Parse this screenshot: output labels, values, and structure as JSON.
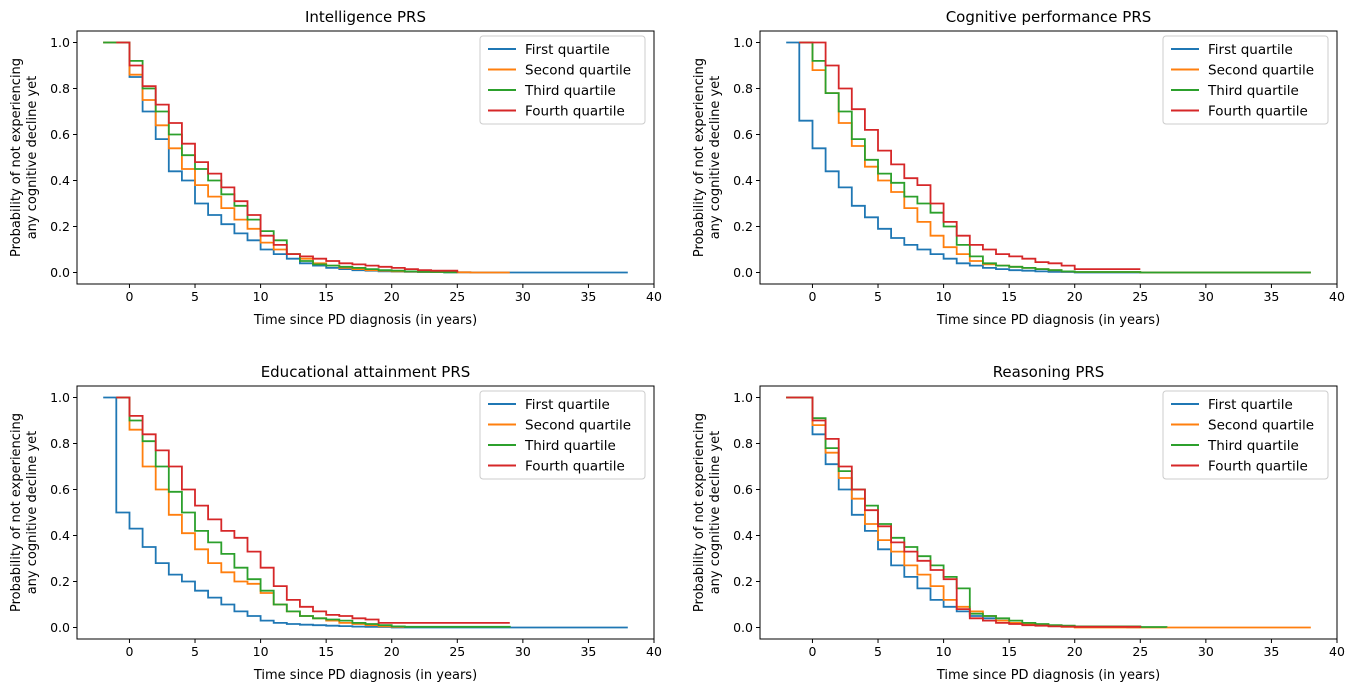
{
  "chart_data": [
    {
      "type": "line",
      "title": "Intelligence PRS",
      "xlabel": "Time since PD diagnosis (in years)",
      "ylabel": [
        "Probability of not experiencing",
        "any cognitive decline yet"
      ],
      "xlim": [
        -4,
        40
      ],
      "ylim": [
        -0.05,
        1.05
      ],
      "xticks": [
        "0",
        "5",
        "10",
        "15",
        "20",
        "25",
        "30",
        "35",
        "40"
      ],
      "yticks": [
        "0.0",
        "0.2",
        "0.4",
        "0.6",
        "0.8",
        "1.0"
      ],
      "legend_position": "upper right",
      "grid": false,
      "series": [
        {
          "name": "First quartile",
          "color": "#1f77b4",
          "x": [
            -2,
            0,
            1,
            2,
            3,
            4,
            5,
            6,
            7,
            8,
            9,
            10,
            11,
            12,
            13,
            14,
            15,
            16,
            17,
            18,
            19,
            20,
            21,
            22,
            23,
            24,
            25,
            26,
            29,
            38
          ],
          "y": [
            1,
            0.85,
            0.7,
            0.58,
            0.44,
            0.4,
            0.3,
            0.25,
            0.21,
            0.17,
            0.14,
            0.1,
            0.08,
            0.06,
            0.04,
            0.03,
            0.02,
            0.015,
            0.01,
            0.008,
            0.005,
            0.004,
            0.003,
            0.002,
            0.002,
            0.001,
            0.001,
            0,
            0,
            0
          ]
        },
        {
          "name": "Second quartile",
          "color": "#ff7f0e",
          "x": [
            -2,
            0,
            1,
            2,
            3,
            4,
            5,
            6,
            7,
            8,
            9,
            10,
            11,
            12,
            13,
            14,
            15,
            16,
            17,
            18,
            19,
            20,
            21,
            22,
            23,
            24,
            25,
            26,
            29
          ],
          "y": [
            1,
            0.86,
            0.75,
            0.64,
            0.54,
            0.45,
            0.38,
            0.33,
            0.28,
            0.23,
            0.19,
            0.13,
            0.1,
            0.08,
            0.06,
            0.04,
            0.03,
            0.02,
            0.015,
            0.01,
            0.008,
            0.005,
            0.004,
            0.003,
            0.002,
            0.002,
            0.001,
            0,
            0
          ]
        },
        {
          "name": "Third quartile",
          "color": "#2ca02c",
          "x": [
            -2,
            0,
            1,
            2,
            3,
            4,
            5,
            6,
            7,
            8,
            9,
            10,
            11,
            12,
            13,
            14,
            15,
            16,
            17,
            18,
            19,
            20,
            21,
            22,
            23,
            24,
            25
          ],
          "y": [
            1,
            0.92,
            0.8,
            0.7,
            0.6,
            0.51,
            0.45,
            0.4,
            0.34,
            0.29,
            0.23,
            0.18,
            0.14,
            0.08,
            0.05,
            0.035,
            0.03,
            0.025,
            0.02,
            0.015,
            0.01,
            0.008,
            0.005,
            0.003,
            0.002,
            0.001,
            0
          ]
        },
        {
          "name": "Fourth quartile",
          "color": "#d62728",
          "x": [
            -1,
            0,
            1,
            2,
            3,
            4,
            5,
            6,
            7,
            8,
            9,
            10,
            11,
            12,
            13,
            14,
            15,
            16,
            17,
            18,
            19,
            20,
            21,
            22,
            23,
            24,
            25
          ],
          "y": [
            1,
            0.9,
            0.81,
            0.73,
            0.65,
            0.56,
            0.48,
            0.43,
            0.37,
            0.31,
            0.25,
            0.16,
            0.12,
            0.08,
            0.07,
            0.06,
            0.05,
            0.04,
            0.035,
            0.03,
            0.025,
            0.02,
            0.015,
            0.01,
            0.008,
            0.008,
            0
          ]
        }
      ]
    },
    {
      "type": "line",
      "title": "Cognitive performance PRS",
      "xlabel": "Time since PD diagnosis (in years)",
      "ylabel": [
        "Probability of not experiencing",
        "any cognitive decline yet"
      ],
      "xlim": [
        -4,
        40
      ],
      "ylim": [
        -0.05,
        1.05
      ],
      "xticks": [
        "0",
        "5",
        "10",
        "15",
        "20",
        "25",
        "30",
        "35",
        "40"
      ],
      "yticks": [
        "0.0",
        "0.2",
        "0.4",
        "0.6",
        "0.8",
        "1.0"
      ],
      "legend_position": "upper right",
      "grid": false,
      "series": [
        {
          "name": "First quartile",
          "color": "#1f77b4",
          "x": [
            -2,
            -1,
            0,
            1,
            2,
            3,
            4,
            5,
            6,
            7,
            8,
            9,
            10,
            11,
            12,
            13,
            14,
            15,
            16,
            17,
            18,
            19,
            20,
            25,
            38
          ],
          "y": [
            1,
            0.66,
            0.54,
            0.44,
            0.37,
            0.29,
            0.24,
            0.19,
            0.15,
            0.12,
            0.1,
            0.08,
            0.06,
            0.04,
            0.03,
            0.02,
            0.015,
            0.01,
            0.008,
            0.005,
            0.003,
            0.002,
            0,
            0,
            0
          ]
        },
        {
          "name": "Second quartile",
          "color": "#ff7f0e",
          "x": [
            -1,
            0,
            1,
            2,
            3,
            4,
            5,
            6,
            7,
            8,
            9,
            10,
            11,
            12,
            13,
            14,
            15,
            16,
            17,
            18,
            19,
            20,
            25,
            38
          ],
          "y": [
            1,
            0.88,
            0.78,
            0.65,
            0.55,
            0.46,
            0.4,
            0.35,
            0.28,
            0.22,
            0.16,
            0.11,
            0.08,
            0.05,
            0.035,
            0.03,
            0.025,
            0.02,
            0.015,
            0.01,
            0.005,
            0.002,
            0,
            0
          ]
        },
        {
          "name": "Third quartile",
          "color": "#2ca02c",
          "x": [
            -1,
            0,
            1,
            2,
            3,
            4,
            5,
            6,
            7,
            8,
            9,
            10,
            11,
            12,
            13,
            14,
            15,
            16,
            17,
            18,
            19,
            20,
            25,
            38
          ],
          "y": [
            1,
            0.92,
            0.78,
            0.7,
            0.58,
            0.49,
            0.43,
            0.39,
            0.33,
            0.3,
            0.26,
            0.2,
            0.12,
            0.07,
            0.04,
            0.03,
            0.025,
            0.02,
            0.015,
            0.01,
            0.005,
            0.002,
            0,
            0
          ]
        },
        {
          "name": "Fourth quartile",
          "color": "#d62728",
          "x": [
            -1,
            0,
            1,
            2,
            3,
            4,
            5,
            6,
            7,
            8,
            9,
            10,
            11,
            12,
            13,
            14,
            15,
            16,
            17,
            18,
            19,
            20,
            25
          ],
          "y": [
            1,
            1,
            0.9,
            0.8,
            0.71,
            0.62,
            0.53,
            0.47,
            0.41,
            0.38,
            0.3,
            0.22,
            0.16,
            0.12,
            0.1,
            0.08,
            0.07,
            0.06,
            0.045,
            0.04,
            0.03,
            0.015,
            0.015
          ]
        }
      ]
    },
    {
      "type": "line",
      "title": "Educational attainment PRS",
      "xlabel": "Time since PD diagnosis (in years)",
      "ylabel": [
        "Probability of not experiencing",
        "any cognitive decline yet"
      ],
      "xlim": [
        -4,
        40
      ],
      "ylim": [
        -0.05,
        1.05
      ],
      "xticks": [
        "0",
        "5",
        "10",
        "15",
        "20",
        "25",
        "30",
        "35",
        "40"
      ],
      "yticks": [
        "0.0",
        "0.2",
        "0.4",
        "0.6",
        "0.8",
        "1.0"
      ],
      "legend_position": "upper right",
      "grid": false,
      "series": [
        {
          "name": "First quartile",
          "color": "#1f77b4",
          "x": [
            -2,
            -1,
            0,
            1,
            2,
            3,
            4,
            5,
            6,
            7,
            8,
            9,
            10,
            11,
            12,
            13,
            14,
            15,
            16,
            17,
            18,
            19,
            20,
            29,
            38
          ],
          "y": [
            1,
            0.5,
            0.43,
            0.35,
            0.28,
            0.23,
            0.2,
            0.16,
            0.13,
            0.1,
            0.07,
            0.05,
            0.03,
            0.02,
            0.015,
            0.012,
            0.01,
            0.008,
            0.006,
            0.004,
            0.003,
            0.002,
            0,
            0,
            0
          ]
        },
        {
          "name": "Second quartile",
          "color": "#ff7f0e",
          "x": [
            -1,
            0,
            1,
            2,
            3,
            4,
            5,
            6,
            7,
            8,
            9,
            10,
            11,
            12,
            13,
            14,
            15,
            16,
            17,
            18,
            19,
            20,
            21
          ],
          "y": [
            1,
            0.86,
            0.7,
            0.6,
            0.49,
            0.41,
            0.34,
            0.28,
            0.24,
            0.2,
            0.19,
            0.15,
            0.1,
            0.07,
            0.05,
            0.04,
            0.03,
            0.02,
            0.015,
            0.01,
            0.005,
            0.003,
            0
          ]
        },
        {
          "name": "Third quartile",
          "color": "#2ca02c",
          "x": [
            -1,
            0,
            1,
            2,
            3,
            4,
            5,
            6,
            7,
            8,
            9,
            10,
            11,
            12,
            13,
            14,
            15,
            16,
            17,
            18,
            19,
            20,
            21,
            29
          ],
          "y": [
            1,
            0.9,
            0.81,
            0.7,
            0.59,
            0.5,
            0.42,
            0.37,
            0.32,
            0.26,
            0.21,
            0.16,
            0.1,
            0.07,
            0.05,
            0.04,
            0.035,
            0.03,
            0.02,
            0.015,
            0.01,
            0.005,
            0.003,
            0
          ]
        },
        {
          "name": "Fourth quartile",
          "color": "#d62728",
          "x": [
            -1,
            0,
            1,
            2,
            3,
            4,
            5,
            6,
            7,
            8,
            9,
            10,
            11,
            12,
            13,
            14,
            15,
            16,
            17,
            18,
            19,
            29
          ],
          "y": [
            1,
            0.92,
            0.84,
            0.77,
            0.7,
            0.6,
            0.53,
            0.47,
            0.42,
            0.39,
            0.33,
            0.26,
            0.18,
            0.12,
            0.09,
            0.07,
            0.055,
            0.05,
            0.04,
            0.035,
            0.02,
            0.02
          ]
        }
      ]
    },
    {
      "type": "line",
      "title": "Reasoning PRS",
      "xlabel": "Time since PD diagnosis (in years)",
      "ylabel": [
        "Probability of not experiencing",
        "any cognitive decline yet"
      ],
      "xlim": [
        -4,
        40
      ],
      "ylim": [
        -0.05,
        1.05
      ],
      "xticks": [
        "0",
        "5",
        "10",
        "15",
        "20",
        "25",
        "30",
        "35",
        "40"
      ],
      "yticks": [
        "0.0",
        "0.2",
        "0.4",
        "0.6",
        "0.8",
        "1.0"
      ],
      "legend_position": "upper right",
      "grid": false,
      "series": [
        {
          "name": "First quartile",
          "color": "#1f77b4",
          "x": [
            -2,
            0,
            1,
            2,
            3,
            4,
            5,
            6,
            7,
            8,
            9,
            10,
            11,
            12,
            13,
            14,
            15,
            16,
            17,
            18,
            19,
            20,
            21,
            22,
            23,
            24,
            25
          ],
          "y": [
            1,
            0.84,
            0.71,
            0.6,
            0.49,
            0.42,
            0.34,
            0.27,
            0.22,
            0.17,
            0.12,
            0.09,
            0.07,
            0.05,
            0.04,
            0.03,
            0.02,
            0.015,
            0.01,
            0.008,
            0.006,
            0.005,
            0.004,
            0.003,
            0.002,
            0.001,
            0
          ]
        },
        {
          "name": "Second quartile",
          "color": "#ff7f0e",
          "x": [
            -2,
            0,
            1,
            2,
            3,
            4,
            5,
            6,
            7,
            8,
            9,
            10,
            11,
            12,
            13,
            14,
            15,
            16,
            17,
            18,
            19,
            20,
            25,
            38
          ],
          "y": [
            1,
            0.88,
            0.76,
            0.65,
            0.56,
            0.45,
            0.38,
            0.33,
            0.27,
            0.23,
            0.18,
            0.12,
            0.09,
            0.07,
            0.05,
            0.03,
            0.02,
            0.015,
            0.01,
            0.006,
            0.003,
            0,
            0,
            0
          ]
        },
        {
          "name": "Third quartile",
          "color": "#2ca02c",
          "x": [
            -2,
            0,
            1,
            2,
            3,
            4,
            5,
            6,
            7,
            8,
            9,
            10,
            11,
            12,
            13,
            14,
            15,
            16,
            17,
            18,
            19,
            20,
            25,
            27
          ],
          "y": [
            1,
            0.91,
            0.78,
            0.68,
            0.6,
            0.53,
            0.45,
            0.39,
            0.35,
            0.31,
            0.27,
            0.22,
            0.17,
            0.06,
            0.05,
            0.04,
            0.03,
            0.02,
            0.015,
            0.01,
            0.008,
            0.005,
            0.002,
            0
          ]
        },
        {
          "name": "Fourth quartile",
          "color": "#d62728",
          "x": [
            -2,
            0,
            1,
            2,
            3,
            4,
            5,
            6,
            7,
            8,
            9,
            10,
            11,
            12,
            13,
            14,
            15,
            16,
            17,
            18,
            19,
            20,
            25
          ],
          "y": [
            1,
            0.9,
            0.82,
            0.7,
            0.6,
            0.51,
            0.44,
            0.37,
            0.33,
            0.29,
            0.25,
            0.21,
            0.08,
            0.04,
            0.03,
            0.02,
            0.015,
            0.01,
            0.008,
            0.005,
            0.004,
            0.003,
            0
          ]
        }
      ]
    }
  ]
}
